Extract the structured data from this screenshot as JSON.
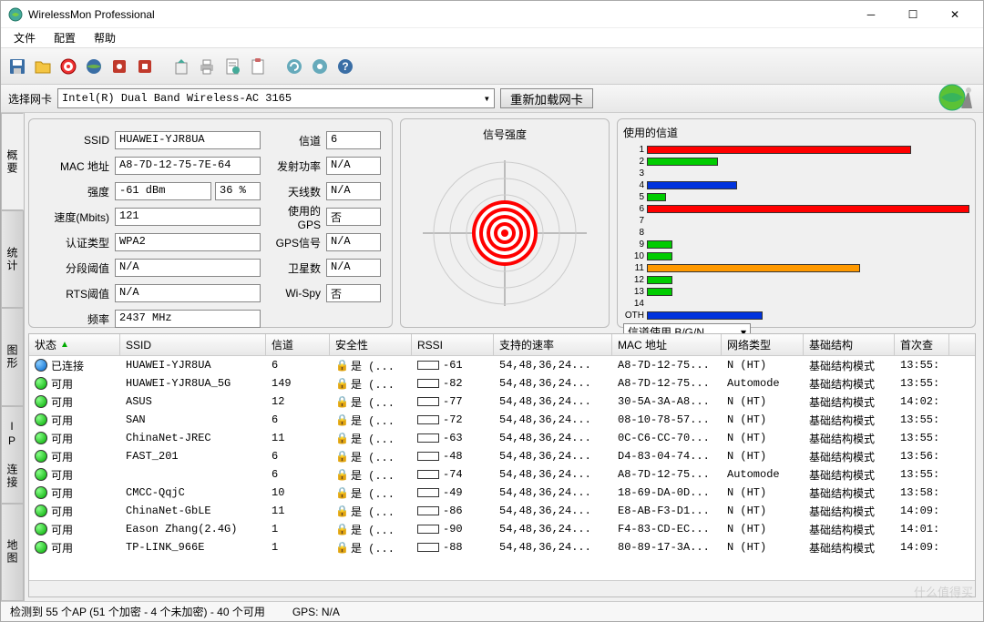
{
  "window": {
    "title": "WirelessMon Professional"
  },
  "menu": {
    "file": "文件",
    "config": "配置",
    "help": "帮助"
  },
  "nic": {
    "label": "选择网卡",
    "selected": "Intel(R) Dual Band Wireless-AC 3165",
    "reload": "重新加载网卡"
  },
  "tabs": {
    "overview": "概要",
    "stats": "统计",
    "graph": "图形",
    "ipconn": "IP 连接",
    "map": "地图"
  },
  "info": {
    "ssid_lbl": "SSID",
    "ssid": "HUAWEI-YJR8UA",
    "mac_lbl": "MAC 地址",
    "mac": "A8-7D-12-75-7E-64",
    "strength_lbl": "强度",
    "strength_dbm": "-61 dBm",
    "strength_pct": "36 %",
    "speed_lbl": "速度(Mbits)",
    "speed": "121",
    "auth_lbl": "认证类型",
    "auth": "WPA2",
    "frag_lbl": "分段阈值",
    "frag": "N/A",
    "rts_lbl": "RTS阈值",
    "rts": "N/A",
    "freq_lbl": "频率",
    "freq": "2437 MHz",
    "channel_lbl": "信道",
    "channel": "6",
    "tx_lbl": "发射功率",
    "tx": "N/A",
    "ant_lbl": "天线数",
    "ant": "N/A",
    "gps_lbl": "使用的GPS",
    "gps": "否",
    "gpssig_lbl": "GPS信号",
    "gpssig": "N/A",
    "sat_lbl": "卫星数",
    "sat": "N/A",
    "wispy_lbl": "Wi-Spy",
    "wispy": "否"
  },
  "signal_panel": {
    "title": "信号强度"
  },
  "channels_panel": {
    "title": "使用的信道",
    "dropdown": "信道使用 B/G/N",
    "bars": [
      {
        "n": "1",
        "pct": 82,
        "color": "#ff0000"
      },
      {
        "n": "2",
        "pct": 22,
        "color": "#00cc00"
      },
      {
        "n": "3",
        "pct": 0,
        "color": "#00cc00"
      },
      {
        "n": "4",
        "pct": 28,
        "color": "#0033dd"
      },
      {
        "n": "5",
        "pct": 6,
        "color": "#00cc00"
      },
      {
        "n": "6",
        "pct": 100,
        "color": "#ff0000"
      },
      {
        "n": "7",
        "pct": 0,
        "color": "#00cc00"
      },
      {
        "n": "8",
        "pct": 0,
        "color": "#00cc00"
      },
      {
        "n": "9",
        "pct": 8,
        "color": "#00cc00"
      },
      {
        "n": "10",
        "pct": 8,
        "color": "#00cc00"
      },
      {
        "n": "11",
        "pct": 66,
        "color": "#ff9900"
      },
      {
        "n": "12",
        "pct": 8,
        "color": "#00cc00"
      },
      {
        "n": "13",
        "pct": 8,
        "color": "#00cc00"
      },
      {
        "n": "14",
        "pct": 0,
        "color": "#00cc00"
      },
      {
        "n": "OTH",
        "pct": 36,
        "color": "#0033dd"
      }
    ]
  },
  "table": {
    "headers": {
      "status": "状态",
      "ssid": "SSID",
      "ch": "信道",
      "sec": "安全性",
      "rssi": "RSSI",
      "rate": "支持的速率",
      "mac": "MAC 地址",
      "net": "网络类型",
      "infra": "基础结构",
      "first": "首次查"
    },
    "sec_text": "是 (...",
    "rows": [
      {
        "status": "已连接",
        "dot": "blue",
        "ssid": "HUAWEI-YJR8UA",
        "ch": "6",
        "rssi": -61,
        "rssi_pct": 45,
        "rate": "54,48,36,24...",
        "mac": "A8-7D-12-75...",
        "net": "N (HT)",
        "infra": "基础结构模式",
        "first": "13:55:"
      },
      {
        "status": "可用",
        "dot": "green",
        "ssid": "HUAWEI-YJR8UA_5G",
        "ch": "149",
        "rssi": -82,
        "rssi_pct": 12,
        "rate": "54,48,36,24...",
        "mac": "A8-7D-12-75...",
        "net": "Automode",
        "infra": "基础结构模式",
        "first": "13:55:"
      },
      {
        "status": "可用",
        "dot": "green",
        "ssid": "ASUS",
        "ch": "12",
        "rssi": -77,
        "rssi_pct": 18,
        "rate": "54,48,36,24...",
        "mac": "30-5A-3A-A8...",
        "net": "N (HT)",
        "infra": "基础结构模式",
        "first": "14:02:"
      },
      {
        "status": "可用",
        "dot": "green",
        "ssid": "SAN",
        "ch": "6",
        "rssi": -72,
        "rssi_pct": 25,
        "rate": "54,48,36,24...",
        "mac": "08-10-78-57...",
        "net": "N (HT)",
        "infra": "基础结构模式",
        "first": "13:55:"
      },
      {
        "status": "可用",
        "dot": "green",
        "ssid": "ChinaNet-JREC",
        "ch": "11",
        "rssi": -63,
        "rssi_pct": 42,
        "rate": "54,48,36,24...",
        "mac": "0C-C6-CC-70...",
        "net": "N (HT)",
        "infra": "基础结构模式",
        "first": "13:55:"
      },
      {
        "status": "可用",
        "dot": "green",
        "ssid": "FAST_201",
        "ch": "6",
        "rssi": -48,
        "rssi_pct": 60,
        "rate": "54,48,36,24...",
        "mac": "D4-83-04-74...",
        "net": "N (HT)",
        "infra": "基础结构模式",
        "first": "13:56:"
      },
      {
        "status": "可用",
        "dot": "green",
        "ssid": "",
        "ch": "6",
        "rssi": -74,
        "rssi_pct": 22,
        "rate": "54,48,36,24...",
        "mac": "A8-7D-12-75...",
        "net": "Automode",
        "infra": "基础结构模式",
        "first": "13:55:"
      },
      {
        "status": "可用",
        "dot": "green",
        "ssid": "CMCC-QqjC",
        "ch": "10",
        "rssi": -49,
        "rssi_pct": 58,
        "rate": "54,48,36,24...",
        "mac": "18-69-DA-0D...",
        "net": "N (HT)",
        "infra": "基础结构模式",
        "first": "13:58:"
      },
      {
        "status": "可用",
        "dot": "green",
        "ssid": "ChinaNet-GbLE",
        "ch": "11",
        "rssi": -86,
        "rssi_pct": 8,
        "rate": "54,48,36,24...",
        "mac": "E8-AB-F3-D1...",
        "net": "N (HT)",
        "infra": "基础结构模式",
        "first": "14:09:"
      },
      {
        "status": "可用",
        "dot": "green",
        "ssid": "Eason Zhang(2.4G)",
        "ch": "1",
        "rssi": -90,
        "rssi_pct": 4,
        "rate": "54,48,36,24...",
        "mac": "F4-83-CD-EC...",
        "net": "N (HT)",
        "infra": "基础结构模式",
        "first": "14:01:"
      },
      {
        "status": "可用",
        "dot": "green",
        "ssid": "TP-LINK_966E",
        "ch": "1",
        "rssi": -88,
        "rssi_pct": 6,
        "rate": "54,48,36,24...",
        "mac": "80-89-17-3A...",
        "net": "N (HT)",
        "infra": "基础结构模式",
        "first": "14:09:"
      }
    ]
  },
  "statusbar": {
    "aps": "检测到 55 个AP (51 个加密 - 4 个未加密) - 40 个可用",
    "gps": "GPS: N/A"
  },
  "watermark": "什么值得买"
}
